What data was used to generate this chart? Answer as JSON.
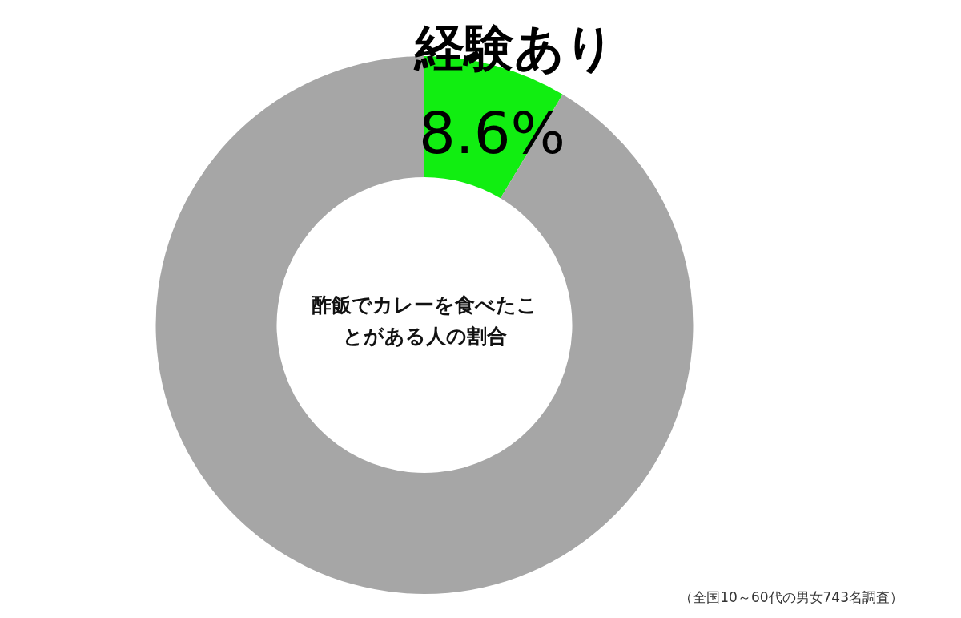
{
  "chart_data": {
    "type": "donut",
    "title": "酢飯でカレーを食べたことがある人の割合",
    "categories": [
      "経験あり",
      null
    ],
    "values": [
      8.6,
      91.4
    ],
    "colors": [
      "#11ee11",
      "#a6a6a6"
    ],
    "value_labels": [
      "8.6%",
      null
    ],
    "legend": false,
    "annotations": [
      "（全国10～60代の男女743名調査）"
    ]
  }
}
